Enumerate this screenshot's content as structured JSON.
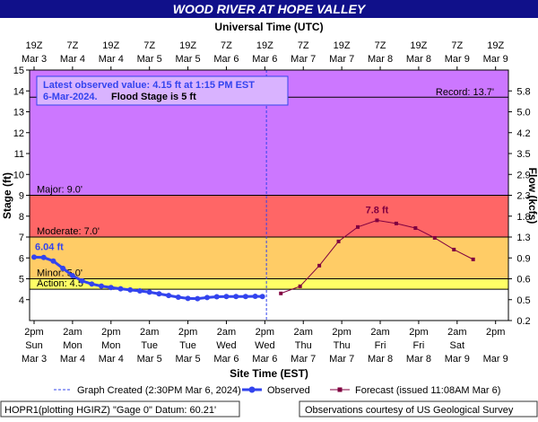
{
  "title": "WOOD RIVER AT HOPE VALLEY",
  "chart_data": {
    "type": "line",
    "x_top_label": "Universal Time (UTC)",
    "xlabel": "Site Time (EST)",
    "ylabel": "Stage (ft)",
    "y2label": "Flow (kcfs)",
    "xlim": [
      "2024-03-03T12:36-05:00",
      "2024-03-09T18:00-05:00"
    ],
    "xticks": [
      {
        "value": "2024-03-03T14:00-05:00",
        "label": [
          "2pm",
          "Sun",
          "Mar 3"
        ]
      },
      {
        "value": "2024-03-04T02:00-05:00",
        "label": [
          "2am",
          "Mon",
          "Mar 4"
        ]
      },
      {
        "value": "2024-03-04T14:00-05:00",
        "label": [
          "2pm",
          "Mon",
          "Mar 4"
        ]
      },
      {
        "value": "2024-03-05T02:00-05:00",
        "label": [
          "2am",
          "Tue",
          "Mar 5"
        ]
      },
      {
        "value": "2024-03-05T14:00-05:00",
        "label": [
          "2pm",
          "Tue",
          "Mar 5"
        ]
      },
      {
        "value": "2024-03-06T02:00-05:00",
        "label": [
          "2am",
          "Wed",
          "Mar 6"
        ]
      },
      {
        "value": "2024-03-06T14:00-05:00",
        "label": [
          "2pm",
          "Wed",
          "Mar 6"
        ]
      },
      {
        "value": "2024-03-07T02:00-05:00",
        "label": [
          "2am",
          "Thu",
          "Mar 7"
        ]
      },
      {
        "value": "2024-03-07T14:00-05:00",
        "label": [
          "2pm",
          "Thu",
          "Mar 7"
        ]
      },
      {
        "value": "2024-03-08T02:00-05:00",
        "label": [
          "2am",
          "Fri",
          "Mar 8"
        ]
      },
      {
        "value": "2024-03-08T14:00-05:00",
        "label": [
          "2pm",
          "Fri",
          "Mar 8"
        ]
      },
      {
        "value": "2024-03-09T02:00-05:00",
        "label": [
          "2am",
          "Sat",
          "Mar 9"
        ]
      },
      {
        "value": "2024-03-09T14:00-05:00",
        "label": [
          "2pm",
          "Mar 9"
        ]
      }
    ],
    "x2ticks": [
      {
        "value": "2024-03-03T19:00Z",
        "label": [
          "19Z",
          "Mar 3"
        ]
      },
      {
        "value": "2024-03-04T07:00Z",
        "label": [
          "7Z",
          "Mar 4"
        ]
      },
      {
        "value": "2024-03-04T19:00Z",
        "label": [
          "19Z",
          "Mar 4"
        ]
      },
      {
        "value": "2024-03-05T07:00Z",
        "label": [
          "7Z",
          "Mar 5"
        ]
      },
      {
        "value": "2024-03-05T19:00Z",
        "label": [
          "19Z",
          "Mar 5"
        ]
      },
      {
        "value": "2024-03-06T07:00Z",
        "label": [
          "7Z",
          "Mar 6"
        ]
      },
      {
        "value": "2024-03-06T19:00Z",
        "label": [
          "19Z",
          "Mar 6"
        ]
      },
      {
        "value": "2024-03-07T07:00Z",
        "label": [
          "7Z",
          "Mar 7"
        ]
      },
      {
        "value": "2024-03-07T19:00Z",
        "label": [
          "19Z",
          "Mar 7"
        ]
      },
      {
        "value": "2024-03-08T07:00Z",
        "label": [
          "7Z",
          "Mar 8"
        ]
      },
      {
        "value": "2024-03-08T19:00Z",
        "label": [
          "19Z",
          "Mar 8"
        ]
      },
      {
        "value": "2024-03-09T07:00Z",
        "label": [
          "7Z",
          "Mar 9"
        ]
      },
      {
        "value": "2024-03-09T19:00Z",
        "label": [
          "19Z",
          "Mar 9"
        ]
      }
    ],
    "ylim": [
      3,
      15
    ],
    "yticks": [
      4,
      5,
      6,
      7,
      8,
      9,
      10,
      11,
      12,
      13,
      14,
      15
    ],
    "y2ticks": [
      0.2,
      0.5,
      0.6,
      0.9,
      1.3,
      1.8,
      2.3,
      2.9,
      3.5,
      4.2,
      {
        "value": 5,
        "label": "5.0"
      },
      5.8
    ],
    "thresholds": [
      {
        "label": "Action: 4.5'",
        "value": 4.5,
        "color": "#ffff66"
      },
      {
        "label": "Minor: 5.0'",
        "value": 5,
        "color": "#ffcc66"
      },
      {
        "label": "Moderate: 7.0'",
        "value": 7,
        "color": "#ff6666"
      },
      {
        "label": "Major: 9.0'",
        "value": 9,
        "color": "#cc77ff"
      }
    ],
    "record": {
      "label": "Record: 13.7'",
      "value": 13.7
    },
    "created": {
      "label": "Graph Created (2:30PM Mar 6, 2024)",
      "x": "2024-03-06T14:30-05:00",
      "color": "#3344ee"
    },
    "series": [
      {
        "name": "Observed",
        "color": "#3344ee",
        "x": [
          "2024-03-03T14:00-05:00",
          "2024-03-03T17:00-05:00",
          "2024-03-03T20:00-05:00",
          "2024-03-03T23:00-05:00",
          "2024-03-04T02:00-05:00",
          "2024-03-04T05:00-05:00",
          "2024-03-04T08:00-05:00",
          "2024-03-04T11:00-05:00",
          "2024-03-04T14:00-05:00",
          "2024-03-04T17:00-05:00",
          "2024-03-04T20:00-05:00",
          "2024-03-04T23:00-05:00",
          "2024-03-05T02:00-05:00",
          "2024-03-05T05:00-05:00",
          "2024-03-05T08:00-05:00",
          "2024-03-05T11:00-05:00",
          "2024-03-05T14:00-05:00",
          "2024-03-05T17:00-05:00",
          "2024-03-05T20:00-05:00",
          "2024-03-05T23:00-05:00",
          "2024-03-06T02:00-05:00",
          "2024-03-06T05:00-05:00",
          "2024-03-06T08:00-05:00",
          "2024-03-06T11:00-05:00",
          "2024-03-06T13:15-05:00"
        ],
        "values": [
          6.04,
          6.02,
          5.85,
          5.5,
          5.15,
          4.9,
          4.75,
          4.65,
          4.58,
          4.52,
          4.47,
          4.42,
          4.36,
          4.28,
          4.2,
          4.12,
          4.06,
          4.05,
          4.1,
          4.14,
          4.15,
          4.15,
          4.15,
          4.16,
          4.15
        ],
        "value_labels": [
          "6.04 ft",
          null,
          null,
          null,
          null,
          null,
          null,
          null,
          null,
          null,
          null,
          null,
          null,
          null,
          null,
          null,
          null,
          null,
          null,
          null,
          null,
          null,
          null,
          null,
          null
        ]
      },
      {
        "name": "Forecast (issued 11:08AM Mar 6)",
        "color": "#800040",
        "x": [
          "2024-03-06T19:00-05:00",
          "2024-03-07T01:00-05:00",
          "2024-03-07T07:00-05:00",
          "2024-03-07T13:00-05:00",
          "2024-03-07T19:00-05:00",
          "2024-03-08T01:00-05:00",
          "2024-03-08T07:00-05:00",
          "2024-03-08T13:00-05:00",
          "2024-03-08T19:00-05:00",
          "2024-03-09T01:00-05:00",
          "2024-03-09T07:00-05:00"
        ],
        "values": [
          4.3,
          4.64,
          5.63,
          6.79,
          7.48,
          7.8,
          7.65,
          7.43,
          6.96,
          6.4,
          5.93
        ],
        "value_labels": [
          null,
          null,
          null,
          null,
          null,
          "7.8 ft",
          null,
          null,
          null,
          null,
          null
        ]
      }
    ],
    "info": {
      "line1": "Latest observed value: 4.15 ft at 1:15 PM EST",
      "line2a": "6-Mar-2024.",
      "line2b": "Flood Stage is 5 ft"
    }
  },
  "footer": {
    "left": "HOPR1(plotting HGIRZ) \"Gage 0\" Datum: 60.21'",
    "right": "Observations courtesy of US Geological Survey"
  }
}
